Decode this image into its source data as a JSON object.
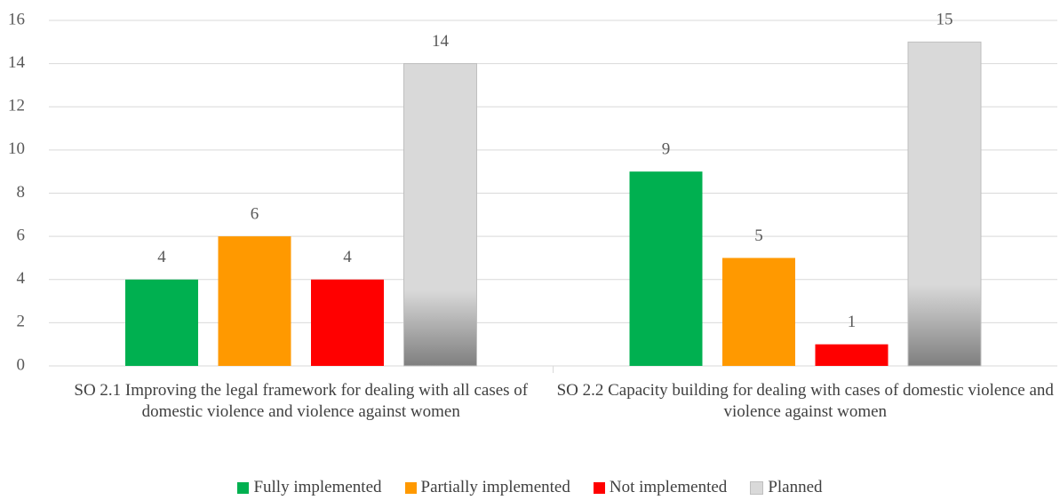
{
  "chart_data": {
    "type": "bar",
    "categories": [
      "SO 2.1 Improving the legal framework for dealing with all cases of domestic violence and violence against women",
      "SO 2.2 Capacity building for dealing with cases of domestic violence and violence against women"
    ],
    "series": [
      {
        "name": "Fully implemented",
        "color": "#00b050",
        "values": [
          4,
          9
        ]
      },
      {
        "name": "Partially implemented",
        "color": "#ff9900",
        "values": [
          6,
          5
        ]
      },
      {
        "name": "Not implemented",
        "color": "#ff0000",
        "values": [
          4,
          1
        ]
      },
      {
        "name": "Planned",
        "color": "#d9d9d9",
        "values": [
          14,
          15
        ]
      }
    ],
    "ylim": [
      0,
      16
    ],
    "yticks": [
      0,
      2,
      4,
      6,
      8,
      10,
      12,
      14,
      16
    ],
    "grid": true,
    "legend": "bottom"
  }
}
